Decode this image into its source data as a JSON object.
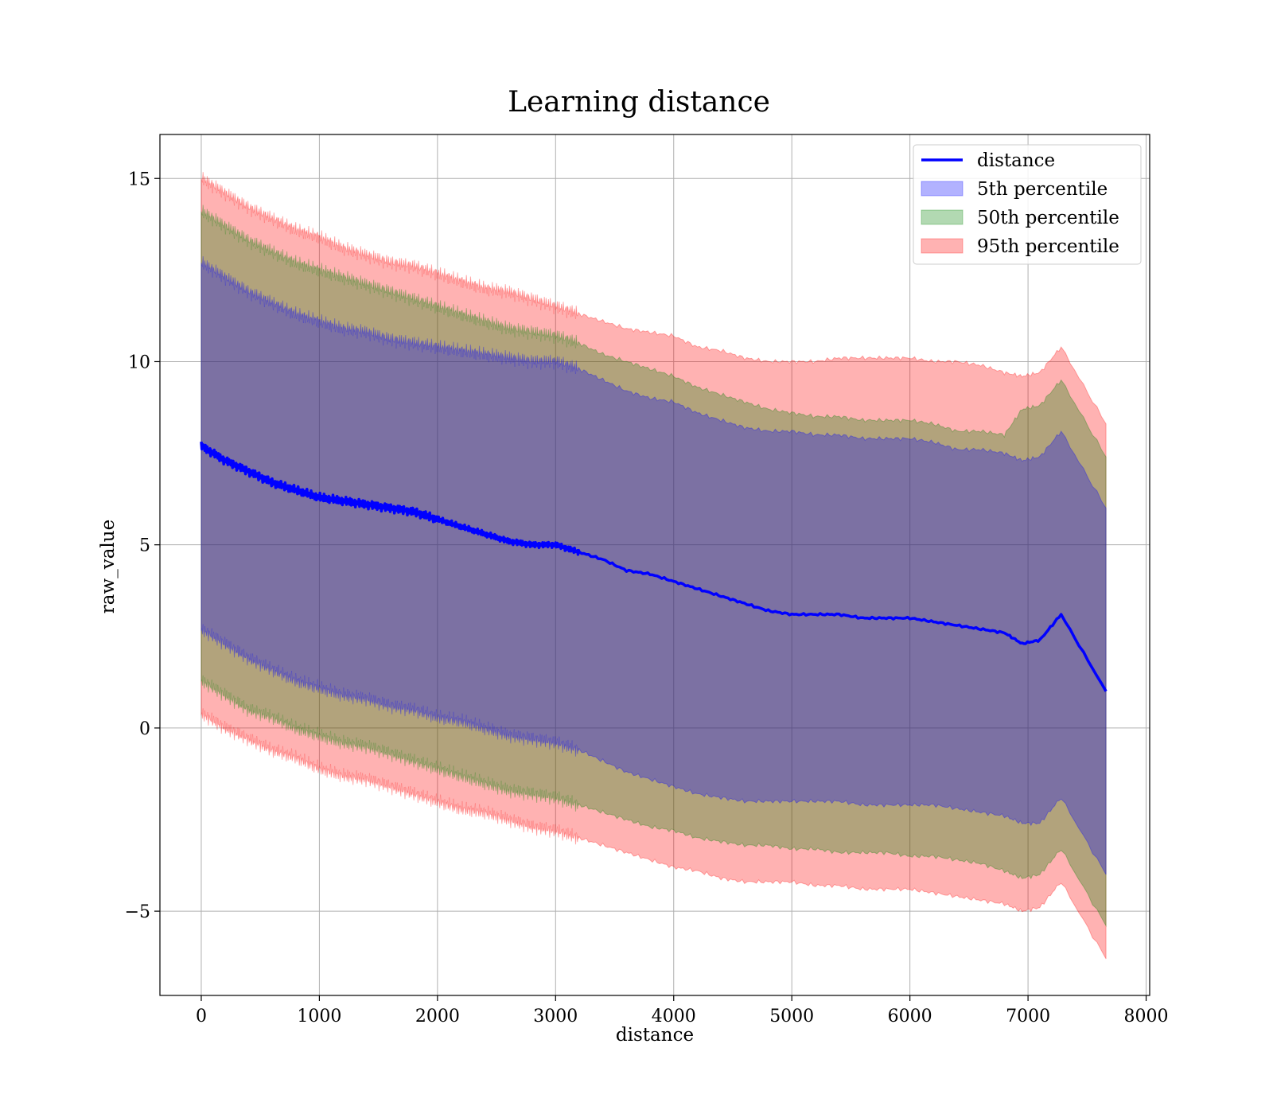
{
  "chart_data": {
    "type": "line",
    "title": "Learning distance",
    "xlabel": "distance",
    "ylabel": "raw_value",
    "xlim": [
      -350,
      8030
    ],
    "ylim": [
      -7.3,
      16.2
    ],
    "xticks": [
      0,
      1000,
      2000,
      3000,
      4000,
      5000,
      6000,
      7000,
      8000
    ],
    "xtick_labels": [
      "0",
      "1000",
      "2000",
      "3000",
      "4000",
      "5000",
      "6000",
      "7000",
      "8000"
    ],
    "yticks": [
      -5,
      0,
      5,
      10,
      15
    ],
    "ytick_labels": [
      "−5",
      "0",
      "5",
      "10",
      "15"
    ],
    "grid": true,
    "legend": {
      "position": "top-right",
      "entries": [
        {
          "label": "distance",
          "kind": "line",
          "color": "#0000ff"
        },
        {
          "label": "5th percentile",
          "kind": "patch",
          "color": "#0000ff"
        },
        {
          "label": "50th percentile",
          "kind": "patch",
          "color": "#008000"
        },
        {
          "label": "95th percentile",
          "kind": "patch",
          "color": "#ff0000"
        }
      ]
    },
    "x": [
      0,
      200,
      400,
      600,
      800,
      1000,
      1200,
      1400,
      1600,
      1800,
      2000,
      2200,
      2400,
      2600,
      2800,
      3000,
      3200,
      3400,
      3600,
      3800,
      4000,
      4200,
      4400,
      4600,
      4800,
      5000,
      5200,
      5400,
      5600,
      5800,
      6000,
      6200,
      6400,
      6600,
      6800,
      6950,
      7100,
      7280,
      7660
    ],
    "series": [
      {
        "name": "distance",
        "color": "#0000ff",
        "values": [
          7.7,
          7.3,
          7.0,
          6.7,
          6.5,
          6.3,
          6.2,
          6.1,
          6.0,
          5.9,
          5.7,
          5.5,
          5.3,
          5.1,
          5.0,
          5.0,
          4.8,
          4.6,
          4.3,
          4.2,
          4.0,
          3.8,
          3.6,
          3.4,
          3.2,
          3.1,
          3.1,
          3.1,
          3.0,
          3.0,
          3.0,
          2.9,
          2.8,
          2.7,
          2.6,
          2.3,
          2.4,
          3.1,
          1.0
        ]
      },
      {
        "name": "5th percentile",
        "color": "#0000ff",
        "upper": [
          12.7,
          12.3,
          11.9,
          11.6,
          11.3,
          11.1,
          10.9,
          10.8,
          10.6,
          10.5,
          10.4,
          10.3,
          10.2,
          10.1,
          10.0,
          10.0,
          9.8,
          9.5,
          9.2,
          9.0,
          8.9,
          8.6,
          8.4,
          8.2,
          8.1,
          8.1,
          8.0,
          8.0,
          7.9,
          7.9,
          7.9,
          7.8,
          7.6,
          7.6,
          7.5,
          7.3,
          7.4,
          8.1,
          6.0
        ],
        "lower": [
          2.7,
          2.3,
          1.9,
          1.6,
          1.3,
          1.1,
          0.9,
          0.8,
          0.6,
          0.5,
          0.3,
          0.2,
          0.0,
          -0.2,
          -0.3,
          -0.4,
          -0.6,
          -0.9,
          -1.2,
          -1.4,
          -1.6,
          -1.8,
          -1.9,
          -2.0,
          -2.0,
          -2.0,
          -2.0,
          -2.0,
          -2.1,
          -2.1,
          -2.1,
          -2.1,
          -2.2,
          -2.3,
          -2.4,
          -2.6,
          -2.6,
          -1.9,
          -4.0
        ]
      },
      {
        "name": "50th percentile",
        "color": "#008000",
        "upper": [
          14.1,
          13.7,
          13.3,
          13.0,
          12.7,
          12.5,
          12.3,
          12.1,
          11.9,
          11.7,
          11.5,
          11.3,
          11.1,
          10.9,
          10.8,
          10.7,
          10.5,
          10.2,
          10.0,
          9.8,
          9.6,
          9.3,
          9.1,
          8.9,
          8.7,
          8.6,
          8.5,
          8.5,
          8.4,
          8.4,
          8.4,
          8.3,
          8.1,
          8.1,
          8.0,
          8.7,
          8.8,
          9.5,
          7.4
        ],
        "lower": [
          1.3,
          0.9,
          0.5,
          0.3,
          0.0,
          -0.2,
          -0.4,
          -0.5,
          -0.7,
          -0.9,
          -1.1,
          -1.3,
          -1.5,
          -1.7,
          -1.8,
          -1.9,
          -2.1,
          -2.3,
          -2.5,
          -2.7,
          -2.8,
          -3.0,
          -3.1,
          -3.2,
          -3.2,
          -3.3,
          -3.3,
          -3.4,
          -3.4,
          -3.4,
          -3.5,
          -3.5,
          -3.6,
          -3.7,
          -3.9,
          -4.1,
          -4.0,
          -3.3,
          -5.4
        ]
      },
      {
        "name": "95th percentile",
        "color": "#ff0000",
        "upper": [
          15.0,
          14.6,
          14.2,
          13.9,
          13.6,
          13.4,
          13.1,
          12.9,
          12.7,
          12.6,
          12.4,
          12.2,
          12.0,
          11.9,
          11.7,
          11.5,
          11.3,
          11.1,
          10.9,
          10.8,
          10.7,
          10.4,
          10.3,
          10.1,
          10.0,
          10.0,
          10.0,
          10.1,
          10.1,
          10.1,
          10.1,
          10.0,
          10.0,
          9.9,
          9.7,
          9.6,
          9.7,
          10.4,
          8.3
        ],
        "lower": [
          0.4,
          0.0,
          -0.3,
          -0.6,
          -0.8,
          -1.1,
          -1.3,
          -1.4,
          -1.6,
          -1.8,
          -2.0,
          -2.2,
          -2.3,
          -2.5,
          -2.7,
          -2.8,
          -3.0,
          -3.2,
          -3.4,
          -3.6,
          -3.8,
          -3.9,
          -4.1,
          -4.2,
          -4.2,
          -4.2,
          -4.3,
          -4.3,
          -4.4,
          -4.4,
          -4.4,
          -4.5,
          -4.6,
          -4.7,
          -4.8,
          -5.0,
          -4.9,
          -4.2,
          -6.3
        ]
      }
    ]
  }
}
